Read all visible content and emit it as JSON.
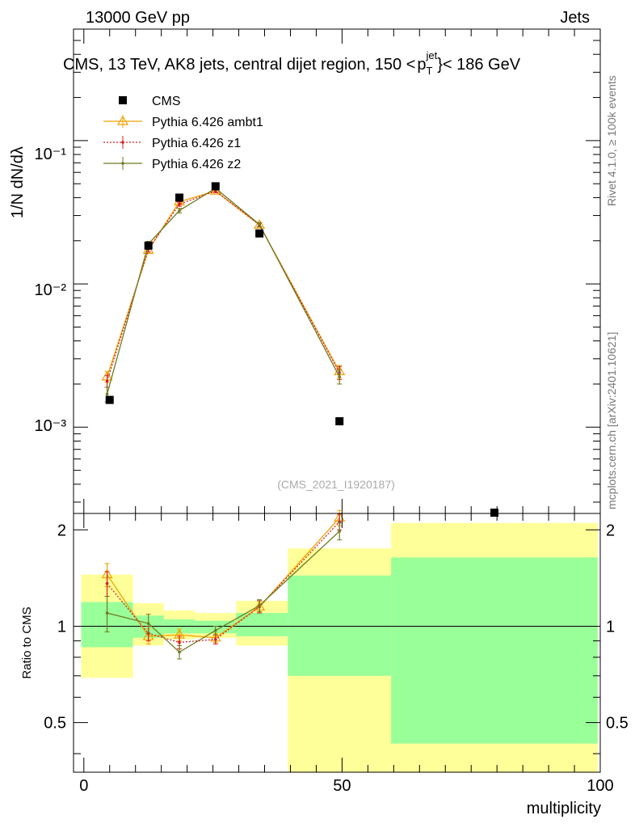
{
  "header": {
    "left": "13000 GeV pp",
    "right": "Jets"
  },
  "side_labels": {
    "rivet": "Rivet 4.1.0, ≥ 100k events",
    "mcplots": "mcplots.cern.ch [arXiv:2401.10621]"
  },
  "chart_data": [
    {
      "type": "line",
      "title": "CMS, 13 TeV, AK8 jets, central dijet region, 150 <",
      "title_sub": "T",
      "title_sup": "jet",
      "title_tail": "}< 186 GeV",
      "ylabel": "1/N dN/dλ",
      "watermark": "(CMS_2021_I1920187)",
      "yscale": "log",
      "xlim": [
        -2,
        100
      ],
      "ylim": [
        0.00025,
        0.6
      ],
      "ytick_labels": [
        "10⁻³",
        "10⁻²",
        "10⁻¹"
      ],
      "legend_position": "top-left",
      "data_series": {
        "name": "CMS",
        "color": "#000000",
        "marker": "square",
        "x": [
          5,
          12.5,
          18.5,
          25.5,
          34,
          49.5,
          79.5
        ],
        "y": [
          0.00155,
          0.0185,
          0.04,
          0.048,
          0.0225,
          0.0011,
          0.00022
        ]
      },
      "series": [
        {
          "name": "Pythia 6.426 ambt1",
          "color": "#f0a000",
          "marker": "open-triangle",
          "dash": "solid",
          "x": [
            4.5,
            12.5,
            18.5,
            25.5,
            34,
            49.5
          ],
          "y": [
            0.00225,
            0.0172,
            0.0375,
            0.0445,
            0.0258,
            0.00245
          ],
          "err": [
            0.0002,
            0.0008,
            0.0012,
            0.0012,
            0.0008,
            0.00025
          ]
        },
        {
          "name": "Pythia 6.426 z1",
          "color": "#d42020",
          "marker": "dot",
          "dash": "dotted",
          "x": [
            4.5,
            12.5,
            18.5,
            25.5,
            34,
            49.5
          ],
          "y": [
            0.0021,
            0.0175,
            0.036,
            0.0445,
            0.0258,
            0.0024
          ],
          "err": [
            0.0002,
            0.0008,
            0.0012,
            0.0012,
            0.0008,
            0.00025
          ]
        },
        {
          "name": "Pythia 6.426 z2",
          "color": "#707a20",
          "marker": "dot",
          "dash": "solid",
          "x": [
            4.5,
            12.5,
            18.5,
            25.5,
            34,
            49.5
          ],
          "y": [
            0.0017,
            0.019,
            0.0325,
            0.0465,
            0.026,
            0.00225
          ],
          "err": [
            0.0002,
            0.0008,
            0.0012,
            0.0012,
            0.0008,
            0.00025
          ]
        }
      ]
    },
    {
      "type": "line",
      "ylabel": "Ratio to CMS",
      "xlabel": "multiplicity",
      "xlim": [
        -2,
        100
      ],
      "ylim": [
        0.35,
        2.25
      ],
      "yticks": [
        0.5,
        1,
        2
      ],
      "ytick_labels": [
        "0.5",
        "1",
        "2"
      ],
      "xticks": [
        0,
        50,
        100
      ],
      "xtick_labels": [
        "0",
        "50",
        "100"
      ],
      "reference_line": 1,
      "uncertainty_bands": {
        "outer_color": "#ffff99",
        "inner_color": "#99ff99",
        "bins": [
          {
            "x0": -0.5,
            "x1": 9.5,
            "outer": [
              0.69,
              1.45
            ],
            "inner": [
              0.86,
              1.19
            ]
          },
          {
            "x0": 9.5,
            "x1": 15.5,
            "outer": [
              0.87,
              1.18
            ],
            "inner": [
              0.92,
              1.08
            ]
          },
          {
            "x0": 15.5,
            "x1": 21.5,
            "outer": [
              0.91,
              1.12
            ],
            "inner": [
              0.95,
              1.05
            ]
          },
          {
            "x0": 21.5,
            "x1": 29.5,
            "outer": [
              0.92,
              1.1
            ],
            "inner": [
              0.95,
              1.04
            ]
          },
          {
            "x0": 29.5,
            "x1": 39.5,
            "outer": [
              0.87,
              1.2
            ],
            "inner": [
              0.93,
              1.1
            ]
          },
          {
            "x0": 39.5,
            "x1": 59.5,
            "outer": [
              0.35,
              1.75
            ],
            "inner": [
              0.7,
              1.44
            ]
          },
          {
            "x0": 59.5,
            "x1": 99.5,
            "outer": [
              0.35,
              2.1
            ],
            "inner": [
              0.43,
              1.64
            ]
          }
        ]
      },
      "series": [
        {
          "name": "Pythia 6.426 ambt1",
          "color": "#f0a000",
          "marker": "open-triangle",
          "dash": "solid",
          "x": [
            4.5,
            12.5,
            18.5,
            25.5,
            34,
            49.5
          ],
          "y": [
            1.45,
            0.93,
            0.94,
            0.92,
            1.15,
            2.18
          ],
          "err": [
            0.12,
            0.05,
            0.04,
            0.03,
            0.05,
            0.12
          ]
        },
        {
          "name": "Pythia 6.426 z1",
          "color": "#d42020",
          "marker": "dot",
          "dash": "dotted",
          "x": [
            4.5,
            12.5,
            18.5,
            25.5,
            34,
            49.5
          ],
          "y": [
            1.36,
            0.95,
            0.89,
            0.91,
            1.15,
            2.12
          ],
          "err": [
            0.12,
            0.05,
            0.04,
            0.03,
            0.05,
            0.12
          ]
        },
        {
          "name": "Pythia 6.426 z2",
          "color": "#707a20",
          "marker": "dot",
          "dash": "solid",
          "x": [
            4.5,
            12.5,
            18.5,
            25.5,
            34,
            49.5
          ],
          "y": [
            1.1,
            1.02,
            0.83,
            0.97,
            1.16,
            1.98
          ],
          "err": [
            0.14,
            0.07,
            0.04,
            0.03,
            0.05,
            0.12
          ]
        }
      ]
    }
  ]
}
